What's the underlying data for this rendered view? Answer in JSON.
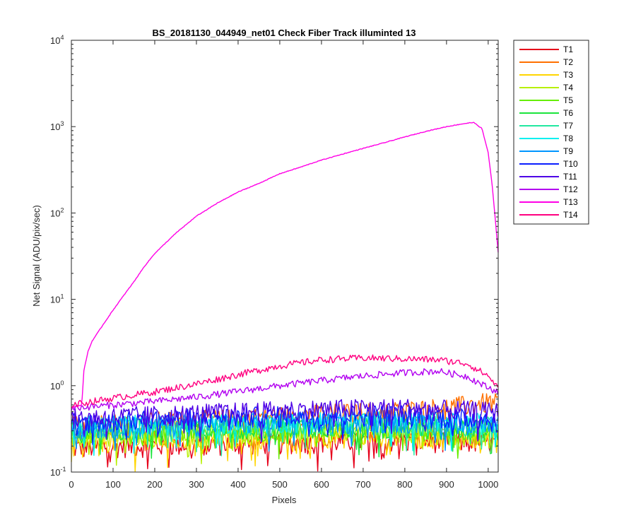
{
  "chart_data": {
    "type": "line",
    "title": "BS_20181130_044949_net01   Check Fiber     Track illuminted 13",
    "xlabel": "Pixels",
    "ylabel": "Net Signal (ADU/pix/sec)",
    "xlim": [
      0,
      1024
    ],
    "ylim": [
      0.1,
      10000
    ],
    "yscale": "log",
    "grid": false,
    "legend_position": "outside-top-right",
    "x_ticks": [
      "0",
      "100",
      "200",
      "300",
      "400",
      "500",
      "600",
      "700",
      "800",
      "900",
      "1000"
    ],
    "y_ticks": [
      {
        "base": "10",
        "exp": "-1",
        "value": 0.1
      },
      {
        "base": "10",
        "exp": "0",
        "value": 1
      },
      {
        "base": "10",
        "exp": "1",
        "value": 10
      },
      {
        "base": "10",
        "exp": "2",
        "value": 100
      },
      {
        "base": "10",
        "exp": "3",
        "value": 1000
      },
      {
        "base": "10",
        "exp": "4",
        "value": 10000
      }
    ],
    "series": [
      {
        "name": "T1",
        "color": "#e6001a",
        "points": [
          [
            0,
            0.19
          ],
          [
            100,
            0.2
          ],
          [
            300,
            0.21
          ],
          [
            500,
            0.22
          ],
          [
            700,
            0.23
          ],
          [
            900,
            0.23
          ],
          [
            1024,
            0.22
          ]
        ]
      },
      {
        "name": "T2",
        "color": "#ff7000",
        "points": [
          [
            0,
            0.36
          ],
          [
            200,
            0.39
          ],
          [
            400,
            0.42
          ],
          [
            600,
            0.48
          ],
          [
            800,
            0.52
          ],
          [
            950,
            0.6
          ],
          [
            1000,
            0.65
          ],
          [
            1024,
            0.62
          ]
        ]
      },
      {
        "name": "T3",
        "color": "#ffd500",
        "points": [
          [
            0,
            0.22
          ],
          [
            200,
            0.24
          ],
          [
            400,
            0.25
          ],
          [
            600,
            0.26
          ],
          [
            800,
            0.26
          ],
          [
            1024,
            0.24
          ]
        ]
      },
      {
        "name": "T4",
        "color": "#b7f000",
        "points": [
          [
            0,
            0.26
          ],
          [
            200,
            0.27
          ],
          [
            400,
            0.28
          ],
          [
            600,
            0.29
          ],
          [
            800,
            0.29
          ],
          [
            1024,
            0.27
          ]
        ]
      },
      {
        "name": "T5",
        "color": "#66ee00",
        "points": [
          [
            0,
            0.28
          ],
          [
            200,
            0.3
          ],
          [
            400,
            0.31
          ],
          [
            600,
            0.32
          ],
          [
            800,
            0.32
          ],
          [
            1024,
            0.3
          ]
        ]
      },
      {
        "name": "T6",
        "color": "#1be43c",
        "points": [
          [
            0,
            0.3
          ],
          [
            200,
            0.32
          ],
          [
            400,
            0.33
          ],
          [
            600,
            0.34
          ],
          [
            800,
            0.34
          ],
          [
            1024,
            0.32
          ]
        ]
      },
      {
        "name": "T7",
        "color": "#22e8a0",
        "points": [
          [
            0,
            0.32
          ],
          [
            200,
            0.34
          ],
          [
            400,
            0.35
          ],
          [
            600,
            0.36
          ],
          [
            800,
            0.36
          ],
          [
            1024,
            0.34
          ]
        ]
      },
      {
        "name": "T8",
        "color": "#00f0f0",
        "points": [
          [
            0,
            0.35
          ],
          [
            200,
            0.37
          ],
          [
            400,
            0.38
          ],
          [
            600,
            0.4
          ],
          [
            800,
            0.4
          ],
          [
            1024,
            0.37
          ]
        ]
      },
      {
        "name": "T9",
        "color": "#0096ff",
        "points": [
          [
            0,
            0.33
          ],
          [
            200,
            0.35
          ],
          [
            400,
            0.37
          ],
          [
            600,
            0.38
          ],
          [
            800,
            0.39
          ],
          [
            1024,
            0.36
          ]
        ]
      },
      {
        "name": "T10",
        "color": "#0a1eff",
        "points": [
          [
            0,
            0.38
          ],
          [
            200,
            0.41
          ],
          [
            400,
            0.44
          ],
          [
            600,
            0.46
          ],
          [
            800,
            0.47
          ],
          [
            1024,
            0.4
          ]
        ]
      },
      {
        "name": "T11",
        "color": "#4d00e6",
        "points": [
          [
            0,
            0.42
          ],
          [
            200,
            0.46
          ],
          [
            400,
            0.5
          ],
          [
            600,
            0.54
          ],
          [
            800,
            0.56
          ],
          [
            1024,
            0.5
          ]
        ]
      },
      {
        "name": "T12",
        "color": "#b200f0",
        "points": [
          [
            0,
            0.55
          ],
          [
            100,
            0.6
          ],
          [
            200,
            0.66
          ],
          [
            300,
            0.74
          ],
          [
            400,
            0.86
          ],
          [
            500,
            1.0
          ],
          [
            600,
            1.15
          ],
          [
            700,
            1.3
          ],
          [
            800,
            1.42
          ],
          [
            880,
            1.48
          ],
          [
            950,
            1.28
          ],
          [
            1000,
            0.95
          ],
          [
            1024,
            0.85
          ]
        ]
      },
      {
        "name": "T13",
        "color": "#ff00e6",
        "points": [
          [
            0,
            0.55
          ],
          [
            25,
            0.6
          ],
          [
            30,
            1.5
          ],
          [
            40,
            2.5
          ],
          [
            50,
            3.3
          ],
          [
            75,
            5
          ],
          [
            100,
            7.5
          ],
          [
            125,
            11
          ],
          [
            150,
            16
          ],
          [
            175,
            24
          ],
          [
            200,
            34
          ],
          [
            250,
            58
          ],
          [
            300,
            92
          ],
          [
            350,
            130
          ],
          [
            400,
            175
          ],
          [
            450,
            220
          ],
          [
            500,
            285
          ],
          [
            550,
            340
          ],
          [
            600,
            410
          ],
          [
            650,
            480
          ],
          [
            700,
            560
          ],
          [
            750,
            650
          ],
          [
            800,
            760
          ],
          [
            850,
            880
          ],
          [
            900,
            1000
          ],
          [
            940,
            1080
          ],
          [
            965,
            1120
          ],
          [
            985,
            950
          ],
          [
            1000,
            500
          ],
          [
            1010,
            200
          ],
          [
            1024,
            35
          ]
        ]
      },
      {
        "name": "T14",
        "color": "#ff0080",
        "points": [
          [
            0,
            0.6
          ],
          [
            100,
            0.72
          ],
          [
            200,
            0.85
          ],
          [
            300,
            1.05
          ],
          [
            400,
            1.35
          ],
          [
            500,
            1.7
          ],
          [
            600,
            2.0
          ],
          [
            700,
            2.1
          ],
          [
            800,
            2.05
          ],
          [
            880,
            2.0
          ],
          [
            950,
            1.8
          ],
          [
            1000,
            1.3
          ],
          [
            1024,
            0.95
          ]
        ]
      }
    ]
  }
}
